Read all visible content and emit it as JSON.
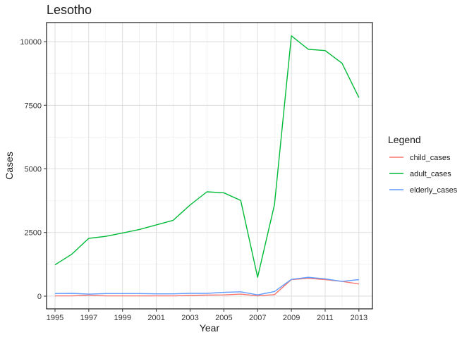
{
  "chart_data": {
    "type": "line",
    "title": "Lesotho",
    "xlabel": "Year",
    "ylabel": "Cases",
    "xlim": [
      1994.5,
      2013.8
    ],
    "ylim": [
      -500,
      10750
    ],
    "x_ticks": [
      1995,
      1997,
      1999,
      2001,
      2003,
      2005,
      2007,
      2009,
      2011,
      2013
    ],
    "y_ticks": [
      0,
      2500,
      5000,
      7500,
      10000
    ],
    "grid": true,
    "legend": {
      "title": "Legend",
      "placement": "right"
    },
    "x": [
      1995,
      1996,
      1997,
      1998,
      1999,
      2000,
      2001,
      2002,
      2003,
      2004,
      2005,
      2006,
      2007,
      2008,
      2009,
      2010,
      2011,
      2012,
      2013
    ],
    "series": [
      {
        "name": "child_cases",
        "color": "#F8766D",
        "values": [
          10,
          10,
          40,
          10,
          10,
          10,
          10,
          10,
          30,
          40,
          50,
          80,
          10,
          60,
          650,
          700,
          650,
          580,
          480
        ]
      },
      {
        "name": "adult_cases",
        "color": "#00BA38",
        "values": [
          1230,
          1650,
          2270,
          2350,
          2480,
          2620,
          2800,
          2980,
          3580,
          4100,
          4060,
          3760,
          740,
          3600,
          10230,
          9700,
          9650,
          9150,
          7800
        ]
      },
      {
        "name": "elderly_cases",
        "color": "#619CFF",
        "values": [
          100,
          110,
          80,
          100,
          100,
          100,
          90,
          90,
          110,
          110,
          150,
          170,
          50,
          180,
          660,
          740,
          680,
          580,
          650
        ]
      }
    ]
  }
}
